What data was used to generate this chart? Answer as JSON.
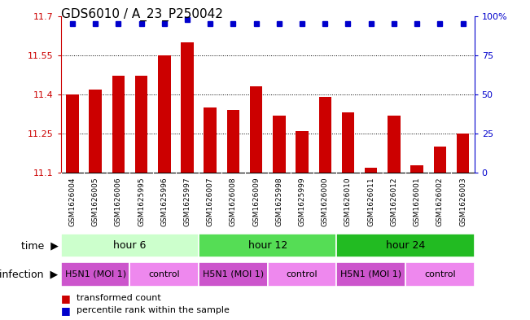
{
  "title": "GDS6010 / A_23_P250042",
  "samples": [
    "GSM1626004",
    "GSM1626005",
    "GSM1626006",
    "GSM1625995",
    "GSM1625996",
    "GSM1625997",
    "GSM1626007",
    "GSM1626008",
    "GSM1626009",
    "GSM1625998",
    "GSM1625999",
    "GSM1626000",
    "GSM1626010",
    "GSM1626011",
    "GSM1626012",
    "GSM1626001",
    "GSM1626002",
    "GSM1626003"
  ],
  "bar_values": [
    11.4,
    11.42,
    11.47,
    11.47,
    11.55,
    11.6,
    11.35,
    11.34,
    11.43,
    11.32,
    11.26,
    11.39,
    11.33,
    11.12,
    11.32,
    11.13,
    11.2,
    11.25
  ],
  "percentile_values": [
    95,
    95,
    95,
    95,
    95,
    98,
    95,
    95,
    95,
    95,
    95,
    95,
    95,
    95,
    95,
    95,
    95,
    95
  ],
  "ymin": 11.1,
  "ymax": 11.7,
  "yticks": [
    11.1,
    11.25,
    11.4,
    11.55,
    11.7
  ],
  "ytick_labels": [
    "11.1",
    "11.25",
    "11.4",
    "11.55",
    "11.7"
  ],
  "right_yticks": [
    0,
    25,
    50,
    75,
    100
  ],
  "right_ytick_labels": [
    "0",
    "25",
    "50",
    "75",
    "100%"
  ],
  "bar_color": "#cc0000",
  "dot_color": "#0000cc",
  "bar_width": 0.55,
  "time_groups": [
    {
      "label": "hour 6",
      "start": 0,
      "end": 6,
      "color": "#ccffcc"
    },
    {
      "label": "hour 12",
      "start": 6,
      "end": 12,
      "color": "#55dd55"
    },
    {
      "label": "hour 24",
      "start": 12,
      "end": 18,
      "color": "#22bb22"
    }
  ],
  "infection_groups": [
    {
      "label": "H5N1 (MOI 1)",
      "start": 0,
      "end": 3,
      "color": "#cc55cc"
    },
    {
      "label": "control",
      "start": 3,
      "end": 6,
      "color": "#ee88ee"
    },
    {
      "label": "H5N1 (MOI 1)",
      "start": 6,
      "end": 9,
      "color": "#cc55cc"
    },
    {
      "label": "control",
      "start": 9,
      "end": 12,
      "color": "#ee88ee"
    },
    {
      "label": "H5N1 (MOI 1)",
      "start": 12,
      "end": 15,
      "color": "#cc55cc"
    },
    {
      "label": "control",
      "start": 15,
      "end": 18,
      "color": "#ee88ee"
    }
  ],
  "label_time": "time",
  "label_infection": "infection",
  "legend_bar": "transformed count",
  "legend_dot": "percentile rank within the sample",
  "title_fontsize": 11,
  "axis_fontsize": 8,
  "bar_fontsize": 6.5,
  "row_fontsize": 9,
  "legend_fontsize": 8
}
